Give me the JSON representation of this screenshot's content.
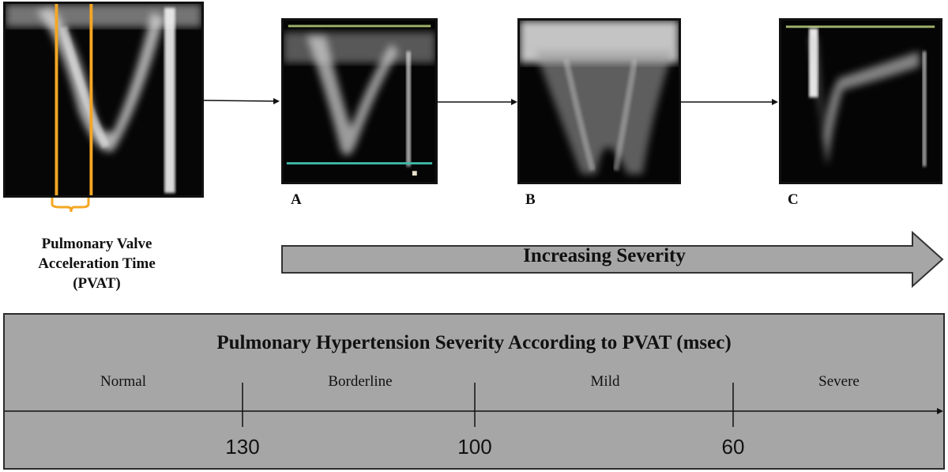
{
  "panels": [
    {
      "id": "pvat",
      "label": ""
    },
    {
      "id": "a",
      "label": "A"
    },
    {
      "id": "b",
      "label": "B"
    },
    {
      "id": "c",
      "label": "C"
    }
  ],
  "pvat_caption": {
    "line1": "Pulmonary Valve",
    "line2": "Acceleration Time",
    "line3": "(PVAT)"
  },
  "severity_arrow": {
    "label": "Increasing Severity"
  },
  "scale": {
    "title": "Pulmonary Hypertension Severity According to PVAT (msec)",
    "categories": [
      "Normal",
      "Borderline",
      "Mild",
      "Severe"
    ],
    "ticks": [
      "130",
      "100",
      "60"
    ]
  },
  "colors": {
    "highlight": "#f5a623",
    "baseline_teal": "#3fb8a8",
    "baseline_olive": "#9fb36b",
    "scale_bg": "#a6a6a6"
  }
}
